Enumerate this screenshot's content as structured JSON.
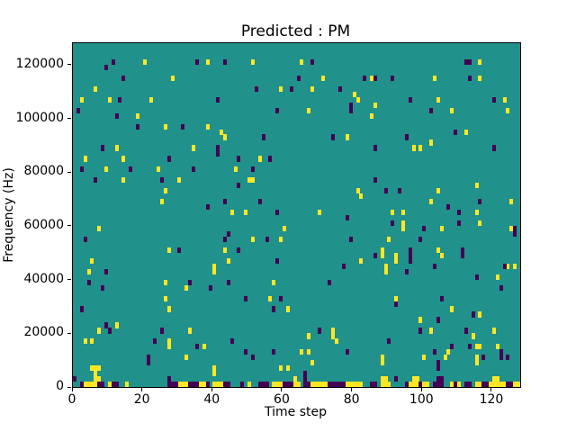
{
  "chart_data": {
    "type": "heatmap",
    "title": "Predicted : PM",
    "x_axis": {
      "label": "Time step",
      "ticks": [
        0,
        20,
        40,
        60,
        80,
        100,
        120
      ]
    },
    "y_axis": {
      "label": "Frequency (Hz)",
      "ticks": [
        0,
        20000,
        40000,
        60000,
        80000,
        100000,
        120000
      ]
    },
    "xlim": [
      0,
      128
    ],
    "ylim": [
      0,
      128000
    ],
    "grid": {
      "time_steps": 128,
      "freq_bins": 64,
      "freq_bin_hz": 2000,
      "gridlines": false,
      "legend": "none"
    },
    "colors": {
      "background": "#21918c",
      "high": "#fde725",
      "low": "#440154",
      "spine": "#000000",
      "figure_bg": "#ffffff"
    },
    "cells_high": [
      [
        20,
        60
      ],
      [
        38,
        60
      ],
      [
        28,
        57
      ],
      [
        6,
        55
      ],
      [
        2,
        53
      ],
      [
        10,
        53
      ],
      [
        22,
        53
      ],
      [
        18,
        50
      ],
      [
        26,
        48
      ],
      [
        38,
        48
      ],
      [
        42,
        47
      ],
      [
        12,
        44
      ],
      [
        34,
        44
      ],
      [
        3,
        42
      ],
      [
        14,
        42
      ],
      [
        9,
        40
      ],
      [
        24,
        40
      ],
      [
        14,
        38
      ],
      [
        30,
        38
      ],
      [
        26,
        36
      ],
      [
        25,
        34
      ],
      [
        51,
        60
      ],
      [
        65,
        60
      ],
      [
        71,
        57
      ],
      [
        85,
        57
      ],
      [
        59,
        55
      ],
      [
        68,
        55
      ],
      [
        80,
        54
      ],
      [
        81,
        53
      ],
      [
        67,
        51
      ],
      [
        85,
        50
      ],
      [
        43,
        46
      ],
      [
        78,
        46
      ],
      [
        53,
        42
      ],
      [
        46,
        40
      ],
      [
        50,
        38
      ],
      [
        51,
        38
      ],
      [
        81,
        36
      ],
      [
        82,
        35
      ],
      [
        45,
        32
      ],
      [
        49,
        32
      ],
      [
        70,
        32
      ],
      [
        116,
        60
      ],
      [
        103,
        57
      ],
      [
        116,
        57
      ],
      [
        104,
        53
      ],
      [
        123,
        53
      ],
      [
        108,
        51
      ],
      [
        124,
        51
      ],
      [
        86,
        52
      ],
      [
        112,
        47
      ],
      [
        102,
        45
      ],
      [
        97,
        44
      ],
      [
        99,
        44
      ],
      [
        104,
        36
      ],
      [
        115,
        37
      ],
      [
        102,
        34
      ],
      [
        125,
        34
      ],
      [
        91,
        32
      ],
      [
        94,
        32
      ],
      [
        115,
        32
      ],
      [
        7,
        29
      ],
      [
        27,
        25
      ],
      [
        5,
        23
      ],
      [
        4,
        21
      ],
      [
        40,
        22
      ],
      [
        40,
        21
      ],
      [
        26,
        19
      ],
      [
        32,
        18
      ],
      [
        26,
        16
      ],
      [
        27,
        14
      ],
      [
        12,
        11
      ],
      [
        7,
        10
      ],
      [
        33,
        10
      ],
      [
        3,
        8
      ],
      [
        5,
        8
      ],
      [
        27,
        8
      ],
      [
        27,
        7
      ],
      [
        37,
        7
      ],
      [
        32,
        5
      ],
      [
        5,
        3
      ],
      [
        6,
        3
      ],
      [
        7,
        3
      ],
      [
        40,
        3
      ],
      [
        40,
        2
      ],
      [
        6,
        2
      ],
      [
        60,
        29
      ],
      [
        51,
        27
      ],
      [
        59,
        27
      ],
      [
        43,
        25
      ],
      [
        44,
        23
      ],
      [
        82,
        23
      ],
      [
        57,
        19
      ],
      [
        56,
        16
      ],
      [
        61,
        14
      ],
      [
        74,
        10
      ],
      [
        74,
        9
      ],
      [
        67,
        9
      ],
      [
        75,
        8
      ],
      [
        65,
        6
      ],
      [
        67,
        6
      ],
      [
        68,
        4
      ],
      [
        59,
        3
      ],
      [
        61,
        3
      ],
      [
        63,
        1
      ],
      [
        94,
        30
      ],
      [
        116,
        30
      ],
      [
        94,
        29
      ],
      [
        105,
        29
      ],
      [
        90,
        27
      ],
      [
        88,
        25
      ],
      [
        88,
        24
      ],
      [
        104,
        25
      ],
      [
        105,
        24
      ],
      [
        92,
        24
      ],
      [
        92,
        23
      ],
      [
        89,
        22
      ],
      [
        89,
        21
      ],
      [
        124,
        22
      ],
      [
        126,
        22
      ],
      [
        121,
        20
      ],
      [
        92,
        16
      ],
      [
        108,
        14
      ],
      [
        116,
        13
      ],
      [
        99,
        12
      ],
      [
        102,
        10
      ],
      [
        120,
        10
      ],
      [
        114,
        9
      ],
      [
        115,
        7
      ],
      [
        116,
        7
      ],
      [
        121,
        7
      ],
      [
        115,
        5
      ],
      [
        115,
        4
      ],
      [
        88,
        5
      ],
      [
        88,
        4
      ],
      [
        100,
        5
      ],
      [
        107,
        6
      ],
      [
        106,
        5
      ],
      [
        125,
        29
      ],
      [
        6,
        1
      ],
      [
        7,
        1
      ],
      [
        88,
        1
      ],
      [
        89,
        1
      ],
      [
        97,
        1
      ],
      [
        98,
        1
      ],
      [
        120,
        1
      ],
      [
        121,
        1
      ],
      [
        3,
        0
      ],
      [
        4,
        0
      ],
      [
        5,
        0
      ],
      [
        6,
        0
      ],
      [
        10,
        0
      ],
      [
        15,
        0
      ],
      [
        30,
        0
      ],
      [
        31,
        0
      ],
      [
        32,
        0
      ],
      [
        36,
        0
      ],
      [
        37,
        0
      ],
      [
        40,
        0
      ],
      [
        41,
        0
      ],
      [
        42,
        0
      ],
      [
        50,
        0
      ],
      [
        57,
        0
      ],
      [
        58,
        0
      ],
      [
        59,
        0
      ],
      [
        63,
        0
      ],
      [
        64,
        0
      ],
      [
        68,
        0
      ],
      [
        69,
        0
      ],
      [
        70,
        0
      ],
      [
        71,
        0
      ],
      [
        72,
        0
      ],
      [
        78,
        0
      ],
      [
        79,
        0
      ],
      [
        80,
        0
      ],
      [
        81,
        0
      ],
      [
        82,
        0
      ],
      [
        88,
        0
      ],
      [
        89,
        0
      ],
      [
        90,
        0
      ],
      [
        96,
        0
      ],
      [
        97,
        0
      ],
      [
        98,
        0
      ],
      [
        100,
        0
      ],
      [
        101,
        0
      ],
      [
        108,
        0
      ],
      [
        110,
        0
      ],
      [
        115,
        0
      ],
      [
        116,
        0
      ],
      [
        119,
        0
      ],
      [
        120,
        0
      ],
      [
        121,
        0
      ],
      [
        122,
        0
      ],
      [
        123,
        0
      ],
      [
        126,
        0
      ],
      [
        127,
        0
      ]
    ],
    "cells_low": [
      [
        11,
        60
      ],
      [
        35,
        60
      ],
      [
        9,
        59
      ],
      [
        14,
        57
      ],
      [
        13,
        53
      ],
      [
        41,
        53
      ],
      [
        1,
        51
      ],
      [
        12,
        50
      ],
      [
        18,
        48
      ],
      [
        31,
        48
      ],
      [
        8,
        44
      ],
      [
        41,
        44
      ],
      [
        41,
        43
      ],
      [
        27,
        42
      ],
      [
        2,
        40
      ],
      [
        16,
        40
      ],
      [
        34,
        40
      ],
      [
        6,
        38
      ],
      [
        25,
        38
      ],
      [
        38,
        33
      ],
      [
        43,
        60
      ],
      [
        68,
        60
      ],
      [
        64,
        57
      ],
      [
        83,
        57
      ],
      [
        52,
        55
      ],
      [
        62,
        55
      ],
      [
        76,
        55
      ],
      [
        58,
        51
      ],
      [
        79,
        51
      ],
      [
        79,
        52
      ],
      [
        54,
        46
      ],
      [
        74,
        46
      ],
      [
        47,
        42
      ],
      [
        56,
        42
      ],
      [
        51,
        40
      ],
      [
        47,
        37
      ],
      [
        53,
        34
      ],
      [
        43,
        34
      ],
      [
        58,
        32
      ],
      [
        78,
        31
      ],
      [
        112,
        60
      ],
      [
        113,
        60
      ],
      [
        86,
        57
      ],
      [
        91,
        57
      ],
      [
        113,
        57
      ],
      [
        96,
        53
      ],
      [
        120,
        53
      ],
      [
        102,
        51
      ],
      [
        109,
        47
      ],
      [
        95,
        46
      ],
      [
        86,
        44
      ],
      [
        120,
        44
      ],
      [
        86,
        38
      ],
      [
        89,
        36
      ],
      [
        93,
        36
      ],
      [
        116,
        34
      ],
      [
        107,
        33
      ],
      [
        110,
        32
      ],
      [
        3,
        27
      ],
      [
        30,
        25
      ],
      [
        9,
        21
      ],
      [
        4,
        19
      ],
      [
        33,
        19
      ],
      [
        8,
        18
      ],
      [
        39,
        18
      ],
      [
        2,
        14
      ],
      [
        9,
        11
      ],
      [
        10,
        10
      ],
      [
        25,
        10
      ],
      [
        23,
        8
      ],
      [
        35,
        7
      ],
      [
        21,
        5
      ],
      [
        21,
        4
      ],
      [
        0,
        1
      ],
      [
        44,
        28
      ],
      [
        79,
        27
      ],
      [
        43,
        27
      ],
      [
        55,
        27
      ],
      [
        47,
        25
      ],
      [
        58,
        23
      ],
      [
        77,
        22
      ],
      [
        44,
        19
      ],
      [
        73,
        19
      ],
      [
        49,
        16
      ],
      [
        59,
        16
      ],
      [
        57,
        14
      ],
      [
        70,
        10
      ],
      [
        45,
        8
      ],
      [
        49,
        6
      ],
      [
        57,
        6
      ],
      [
        78,
        6
      ],
      [
        51,
        5
      ],
      [
        66,
        2
      ],
      [
        66,
        1
      ],
      [
        91,
        30
      ],
      [
        110,
        30
      ],
      [
        100,
        29
      ],
      [
        99,
        27
      ],
      [
        96,
        25
      ],
      [
        96,
        24
      ],
      [
        96,
        23
      ],
      [
        111,
        25
      ],
      [
        111,
        24
      ],
      [
        86,
        24
      ],
      [
        95,
        21
      ],
      [
        103,
        22
      ],
      [
        123,
        22
      ],
      [
        115,
        20
      ],
      [
        122,
        18
      ],
      [
        105,
        16
      ],
      [
        92,
        15
      ],
      [
        114,
        13
      ],
      [
        104,
        12
      ],
      [
        99,
        10
      ],
      [
        112,
        10
      ],
      [
        90,
        8
      ],
      [
        113,
        7
      ],
      [
        108,
        7
      ],
      [
        103,
        6
      ],
      [
        104,
        4
      ],
      [
        104,
        3
      ],
      [
        117,
        5
      ],
      [
        122,
        6
      ],
      [
        122,
        5
      ],
      [
        124,
        5
      ],
      [
        92,
        1
      ],
      [
        126,
        28
      ],
      [
        126,
        29
      ],
      [
        27,
        1
      ],
      [
        104,
        1
      ],
      [
        105,
        1
      ],
      [
        2,
        0
      ],
      [
        7,
        0
      ],
      [
        8,
        0
      ],
      [
        11,
        0
      ],
      [
        12,
        0
      ],
      [
        27,
        0
      ],
      [
        28,
        0
      ],
      [
        29,
        0
      ],
      [
        33,
        0
      ],
      [
        34,
        0
      ],
      [
        35,
        0
      ],
      [
        38,
        0
      ],
      [
        43,
        0
      ],
      [
        44,
        0
      ],
      [
        48,
        0
      ],
      [
        53,
        0
      ],
      [
        54,
        0
      ],
      [
        55,
        0
      ],
      [
        60,
        0
      ],
      [
        61,
        0
      ],
      [
        62,
        0
      ],
      [
        66,
        0
      ],
      [
        67,
        0
      ],
      [
        73,
        0
      ],
      [
        74,
        0
      ],
      [
        75,
        0
      ],
      [
        76,
        0
      ],
      [
        77,
        0
      ],
      [
        85,
        0
      ],
      [
        86,
        0
      ],
      [
        95,
        0
      ],
      [
        99,
        0
      ],
      [
        103,
        0
      ],
      [
        104,
        0
      ],
      [
        105,
        0
      ],
      [
        109,
        0
      ],
      [
        112,
        0
      ],
      [
        113,
        0
      ],
      [
        117,
        0
      ],
      [
        118,
        0
      ],
      [
        124,
        0
      ],
      [
        125,
        0
      ]
    ]
  }
}
